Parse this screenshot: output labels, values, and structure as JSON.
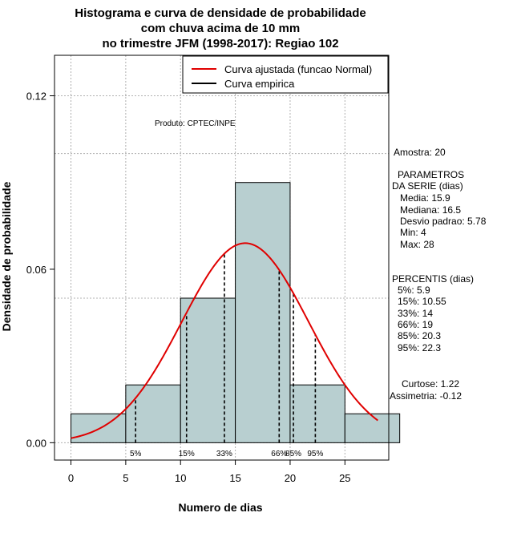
{
  "chart_data": {
    "type": "bar",
    "title": [
      "Histograma e curva de densidade de probabilidade",
      "com chuva acima de 10 mm",
      "no trimestre JFM (1998-2017): Regiao 102"
    ],
    "xlabel": "Numero de dias",
    "ylabel": "Densidade de probabilidade",
    "xlim": [
      -1.5,
      29
    ],
    "ylim": [
      -0.006,
      0.134
    ],
    "x_ticks": [
      0,
      5,
      10,
      15,
      20,
      25
    ],
    "y_ticks": [
      0.0,
      0.06,
      0.12
    ],
    "y_tick_labels": [
      "0.00",
      "0.06",
      "0.12"
    ],
    "y_grid": [
      0.0,
      0.05,
      0.1,
      0.12
    ],
    "bins": [
      {
        "from": 0,
        "to": 5,
        "density": 0.01
      },
      {
        "from": 5,
        "to": 10,
        "density": 0.02
      },
      {
        "from": 10,
        "to": 15,
        "density": 0.05
      },
      {
        "from": 15,
        "to": 20,
        "density": 0.09
      },
      {
        "from": 20,
        "to": 25,
        "density": 0.02
      },
      {
        "from": 25,
        "to": 30,
        "density": 0.01
      }
    ],
    "normal_fit": {
      "mean": 15.9,
      "sd": 5.78,
      "x_range": [
        0,
        28
      ],
      "color": "#e00000"
    },
    "percentile_markers": [
      {
        "label": "5%",
        "x": 5.9
      },
      {
        "label": "15%",
        "x": 10.55
      },
      {
        "label": "33%",
        "x": 14
      },
      {
        "label": "66%",
        "x": 19
      },
      {
        "label": "85%",
        "x": 20.3
      },
      {
        "label": "95%",
        "x": 22.3
      }
    ],
    "legend": [
      {
        "label": "Curva ajustada (funcao Normal)",
        "color": "#e00000"
      },
      {
        "label": "Curva empirica",
        "color": "#000000"
      }
    ],
    "legend_position": "top-right",
    "bar_color": "#b8cfd0",
    "annotation": "Produto: CPTEC/INPE"
  },
  "stats_panel": {
    "amostra": "Amostra: 20",
    "parametros_header": [
      "PARAMETROS",
      "DA SERIE (dias)"
    ],
    "parametros": [
      "Media: 15.9",
      "Mediana: 16.5",
      "Desvio padrao: 5.78",
      "Min: 4",
      "Max: 28"
    ],
    "percentis_header": "PERCENTIS (dias)",
    "percentis": [
      "5%: 5.9",
      "15%: 10.55",
      "33%: 14",
      "66%: 19",
      "85%: 20.3",
      "95%: 22.3"
    ],
    "curtose": "Curtose: 1.22",
    "assimetria": "Assimetria: -0.12"
  }
}
